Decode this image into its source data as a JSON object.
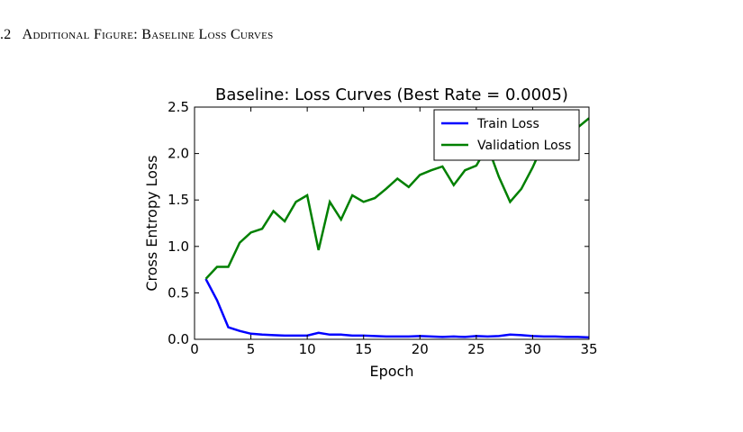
{
  "section": {
    "number": ".2",
    "title": "Additional Figure: Baseline Loss Curves"
  },
  "chart_data": {
    "type": "line",
    "title": "Baseline: Loss Curves (Best Rate = 0.0005)",
    "xlabel": "Epoch",
    "ylabel": "Cross Entropy Loss",
    "xlim": [
      0,
      35
    ],
    "ylim": [
      0,
      2.5
    ],
    "xticks": [
      "0",
      "5",
      "10",
      "15",
      "20",
      "25",
      "30",
      "35"
    ],
    "yticks": [
      "0.0",
      "0.5",
      "1.0",
      "1.5",
      "2.0",
      "2.5"
    ],
    "grid": false,
    "legend_position": "top-right",
    "x": [
      1,
      2,
      3,
      4,
      5,
      6,
      7,
      8,
      9,
      10,
      11,
      12,
      13,
      14,
      15,
      16,
      17,
      18,
      19,
      20,
      21,
      22,
      23,
      24,
      25,
      26,
      27,
      28,
      29,
      30,
      31,
      32,
      33,
      34,
      35
    ],
    "series": [
      {
        "name": "Train Loss",
        "color": "#0000ff",
        "values": [
          0.65,
          0.42,
          0.13,
          0.09,
          0.06,
          0.05,
          0.045,
          0.04,
          0.04,
          0.04,
          0.07,
          0.05,
          0.05,
          0.04,
          0.04,
          0.035,
          0.03,
          0.03,
          0.03,
          0.035,
          0.03,
          0.025,
          0.03,
          0.025,
          0.035,
          0.03,
          0.035,
          0.05,
          0.045,
          0.035,
          0.03,
          0.03,
          0.025,
          0.025,
          0.02
        ]
      },
      {
        "name": "Validation Loss",
        "color": "#008000",
        "values": [
          0.65,
          0.78,
          0.78,
          1.04,
          1.15,
          1.19,
          1.38,
          1.27,
          1.48,
          1.55,
          0.96,
          1.48,
          1.29,
          1.55,
          1.48,
          1.52,
          1.62,
          1.73,
          1.64,
          1.77,
          1.82,
          1.86,
          1.66,
          1.82,
          1.87,
          2.08,
          1.75,
          1.48,
          1.62,
          1.85,
          2.12,
          2.18,
          2.22,
          2.28,
          2.38
        ]
      }
    ]
  }
}
